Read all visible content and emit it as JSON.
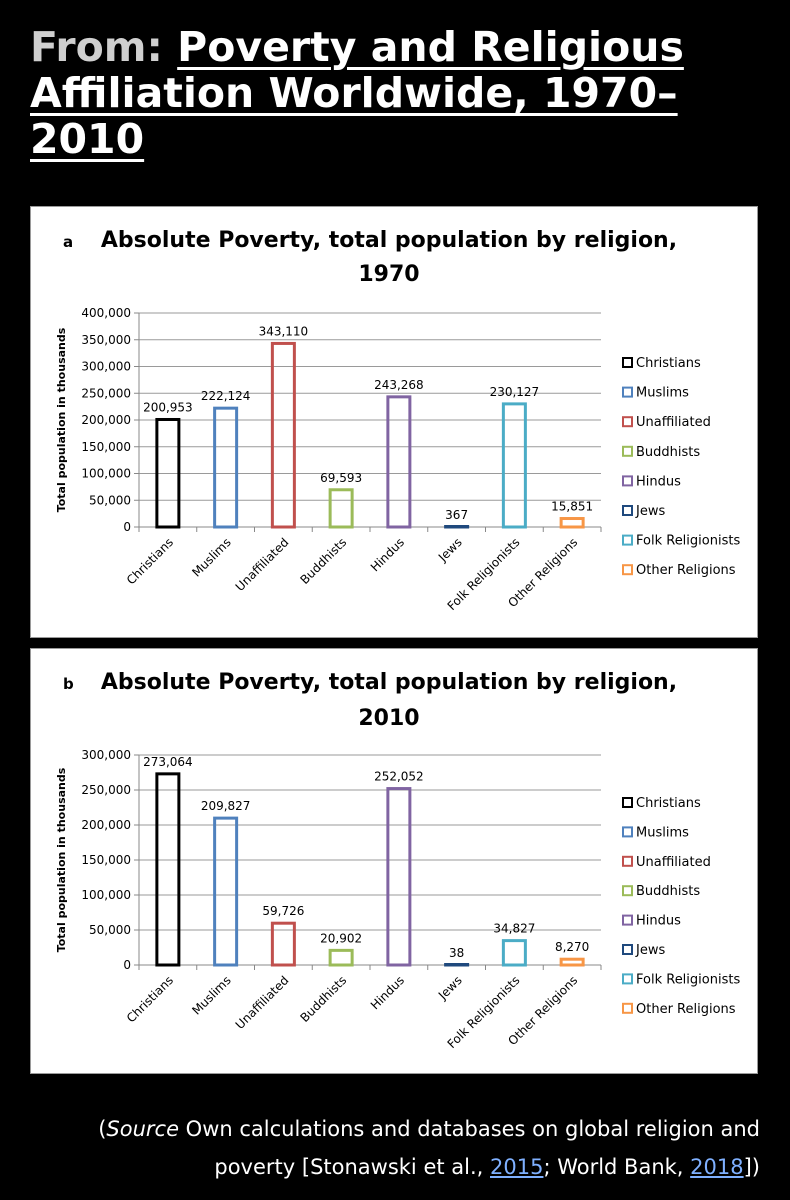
{
  "header": {
    "prefix": "From:",
    "title": "Poverty and Religious Affiliation Worldwide, 1970–2010"
  },
  "chart_data": [
    {
      "type": "bar",
      "panel_label": "a",
      "title_line1": "Absolute Poverty, total population by religion,",
      "title_line2": "1970",
      "ylabel": "Total population in thousands",
      "xlabel": "",
      "ylim": [
        0,
        400000
      ],
      "yticks": [
        0,
        50000,
        100000,
        150000,
        200000,
        250000,
        300000,
        350000,
        400000
      ],
      "ytick_labels": [
        "0",
        "50,000",
        "100,000",
        "150,000",
        "200,000",
        "250,000",
        "300,000",
        "350,000",
        "400,000"
      ],
      "categories": [
        "Christians",
        "Muslims",
        "Unaffiliated",
        "Buddhists",
        "Hindus",
        "Jews",
        "Folk Religionists",
        "Other Religions"
      ],
      "values": [
        200953,
        222124,
        343110,
        69593,
        243268,
        367,
        230127,
        15851
      ],
      "value_labels": [
        "200,953",
        "222,124",
        "343,110",
        "69,593",
        "243,268",
        "367",
        "230,127",
        "15,851"
      ],
      "colors": [
        "#000000",
        "#4f81bd",
        "#c0504d",
        "#9bbb59",
        "#8064a2",
        "#1f497d",
        "#4bacc6",
        "#f79646"
      ],
      "legend": [
        "Christians",
        "Muslims",
        "Unaffiliated",
        "Buddhists",
        "Hindus",
        "Jews",
        "Folk Religionists",
        "Other Religions"
      ],
      "legend_position": "right",
      "grid": true
    },
    {
      "type": "bar",
      "panel_label": "b",
      "title_line1": "Absolute Poverty, total population by religion,",
      "title_line2": "2010",
      "ylabel": "Total population in thousands",
      "xlabel": "",
      "ylim": [
        0,
        300000
      ],
      "yticks": [
        0,
        50000,
        100000,
        150000,
        200000,
        250000,
        300000
      ],
      "ytick_labels": [
        "0",
        "50,000",
        "100,000",
        "150,000",
        "200,000",
        "250,000",
        "300,000"
      ],
      "categories": [
        "Christians",
        "Muslims",
        "Unaffiliated",
        "Buddhists",
        "Hindus",
        "Jews",
        "Folk Religionists",
        "Other Religions"
      ],
      "values": [
        273064,
        209827,
        59726,
        20902,
        252052,
        38,
        34827,
        8270
      ],
      "value_labels": [
        "273,064",
        "209,827",
        "59,726",
        "20,902",
        "252,052",
        "38",
        "34,827",
        "8,270"
      ],
      "colors": [
        "#000000",
        "#4f81bd",
        "#c0504d",
        "#9bbb59",
        "#8064a2",
        "#1f497d",
        "#4bacc6",
        "#f79646"
      ],
      "legend": [
        "Christians",
        "Muslims",
        "Unaffiliated",
        "Buddhists",
        "Hindus",
        "Jews",
        "Folk Religionists",
        "Other Religions"
      ],
      "legend_position": "right",
      "grid": true
    }
  ],
  "caption": {
    "open_paren": "(",
    "source_word": "Source",
    "text1": " Own calculations and databases on global religion and poverty [Stonawski et al., ",
    "ref1": "2015",
    "text2": "; World Bank, ",
    "ref2": "2018",
    "close": "])"
  }
}
